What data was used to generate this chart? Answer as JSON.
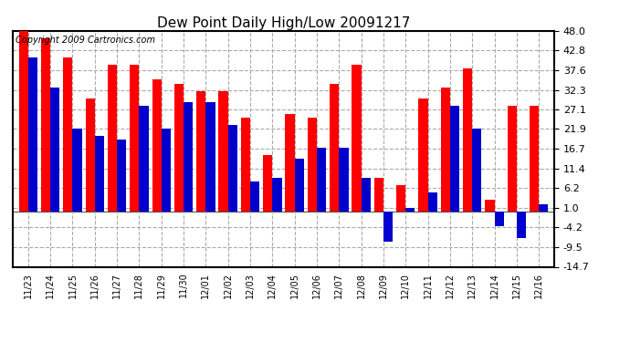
{
  "title": "Dew Point Daily High/Low 20091217",
  "copyright": "Copyright 2009 Cartronics.com",
  "dates": [
    "11/23",
    "11/24",
    "11/25",
    "11/26",
    "11/27",
    "11/28",
    "11/29",
    "11/30",
    "12/01",
    "12/02",
    "12/03",
    "12/04",
    "12/05",
    "12/06",
    "12/07",
    "12/08",
    "12/09",
    "12/10",
    "12/11",
    "12/12",
    "12/13",
    "12/14",
    "12/15",
    "12/16"
  ],
  "high": [
    48,
    46,
    41,
    30,
    39,
    39,
    35,
    34,
    32,
    32,
    25,
    15,
    26,
    25,
    34,
    39,
    9,
    7,
    30,
    33,
    38,
    3,
    28,
    28
  ],
  "low": [
    41,
    33,
    22,
    20,
    19,
    28,
    22,
    29,
    29,
    23,
    8,
    9,
    14,
    17,
    17,
    9,
    -8,
    1,
    5,
    28,
    22,
    -4,
    -7,
    2
  ],
  "ylim_min": -14.7,
  "ylim_max": 48.0,
  "yticks": [
    -14.7,
    -9.5,
    -4.2,
    1.0,
    6.2,
    11.4,
    16.7,
    21.9,
    27.1,
    32.3,
    37.6,
    42.8,
    48.0
  ],
  "high_color": "#ff0000",
  "low_color": "#0000cc",
  "bg_color": "#ffffff",
  "grid_color": "#aaaaaa",
  "bar_width": 0.42,
  "title_fontsize": 11,
  "copyright_fontsize": 7,
  "tick_fontsize": 7,
  "ytick_fontsize": 8
}
